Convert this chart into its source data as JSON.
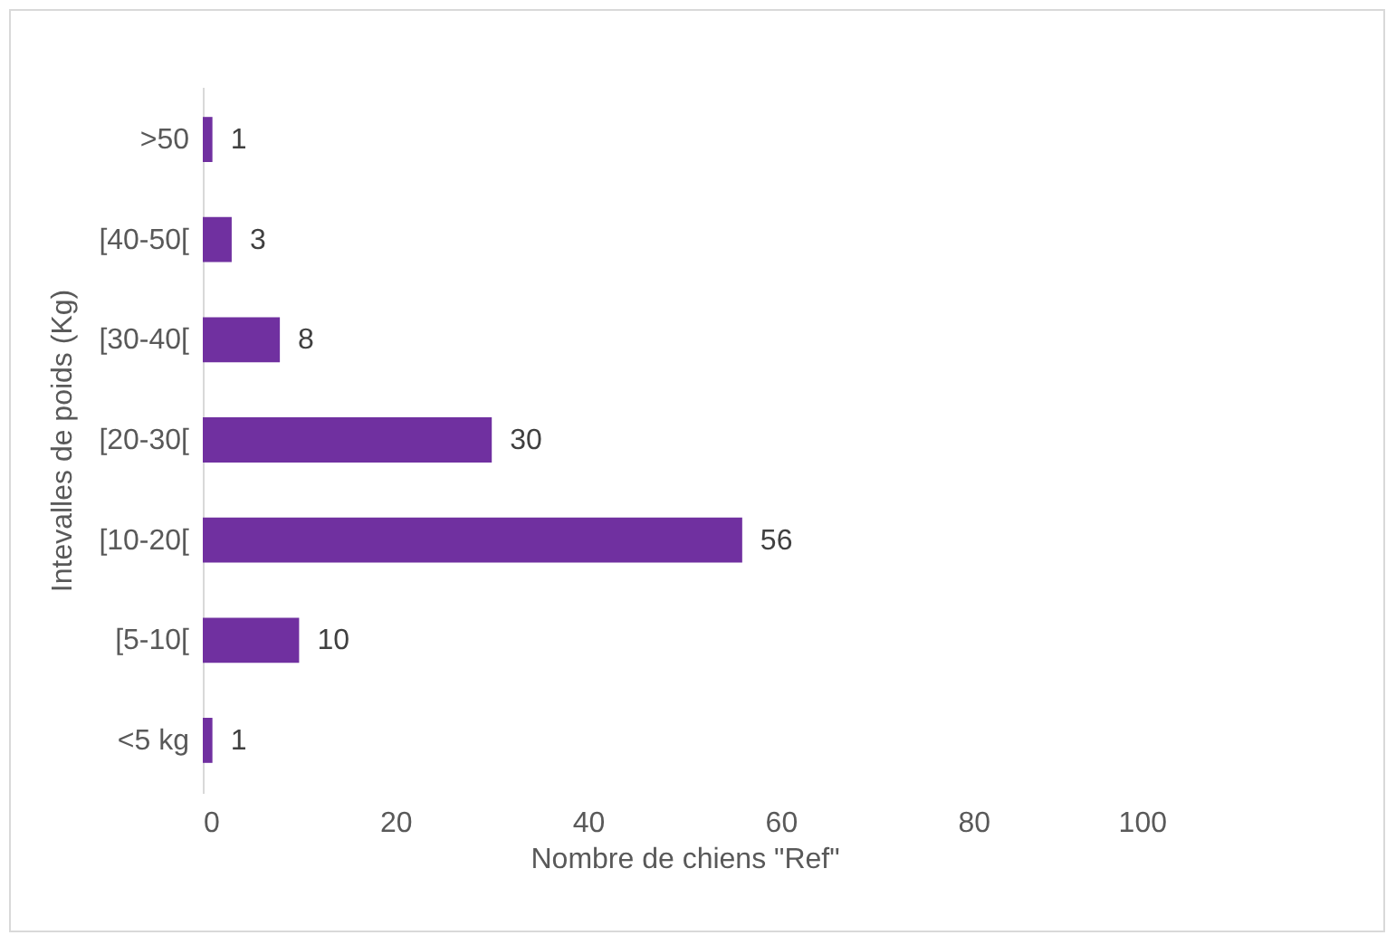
{
  "chart_data": {
    "type": "bar",
    "orientation": "horizontal",
    "xlabel": "Nombre de chiens \"Ref\"",
    "ylabel": "Intevalles de poids (Kg)",
    "categories": [
      ">50",
      "[40-50[",
      "[30-40[",
      "[20-30[",
      "[10-20[",
      "[5-10[",
      "<5 kg"
    ],
    "values": [
      1,
      3,
      8,
      30,
      56,
      10,
      1
    ],
    "color": "#7030a0",
    "xlim": [
      0,
      100
    ],
    "xticks": [
      0,
      20,
      40,
      60,
      80,
      100
    ],
    "data_labels": true,
    "grid": false
  }
}
